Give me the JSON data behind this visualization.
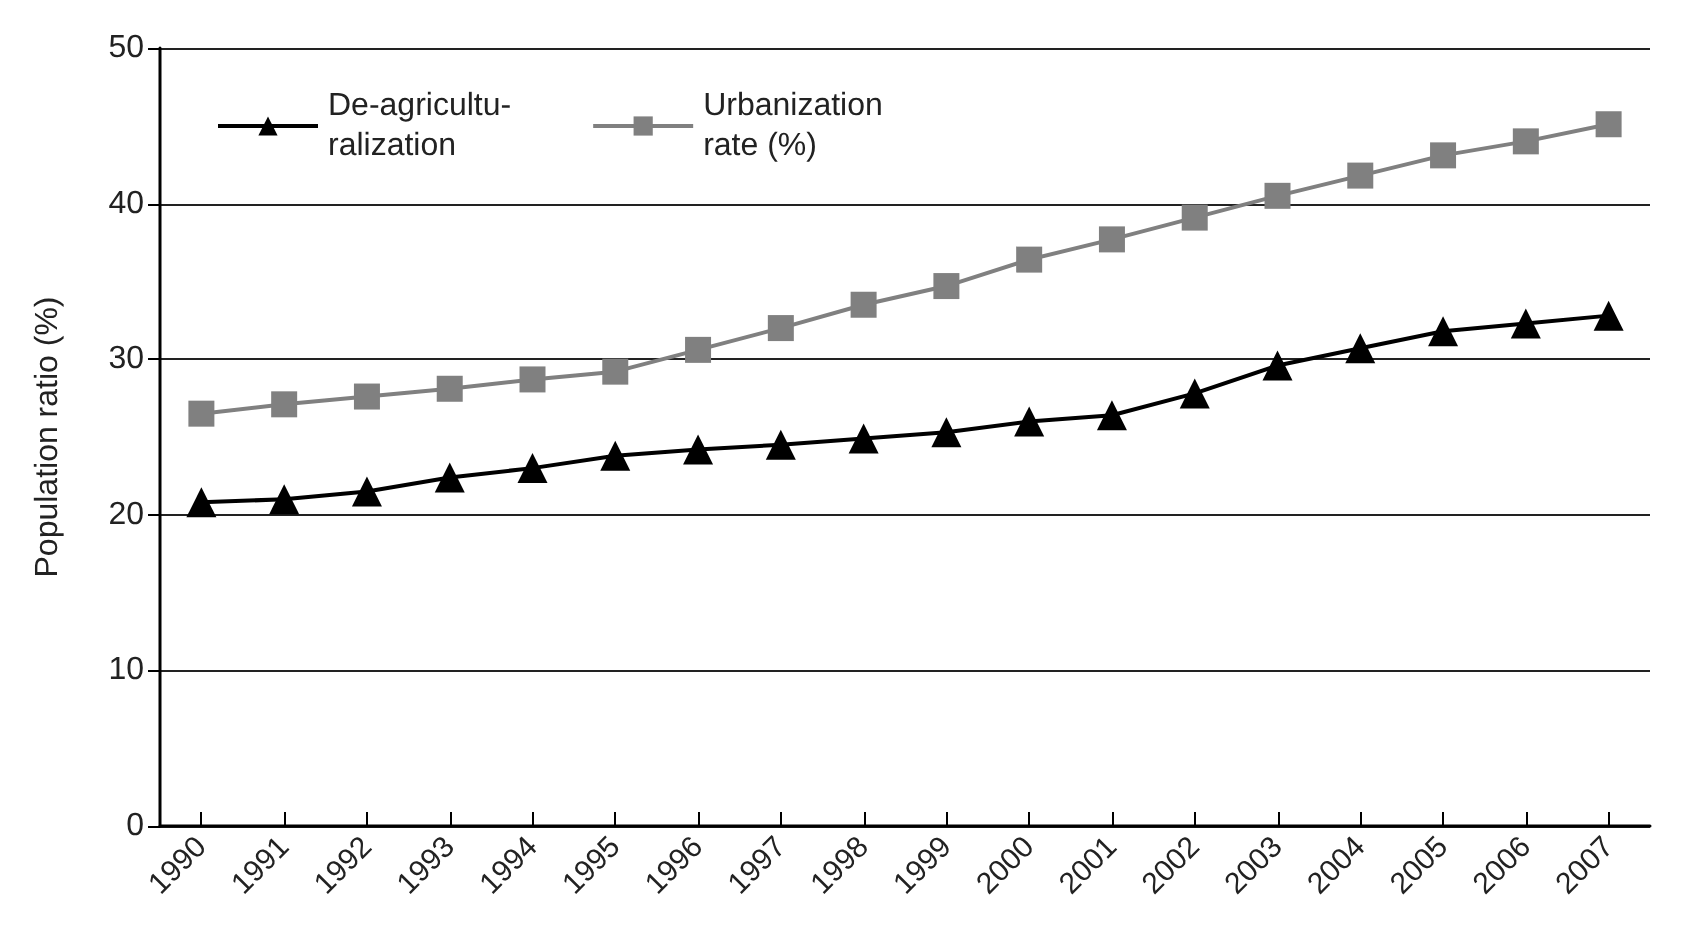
{
  "chart_data": {
    "type": "line",
    "ylabel": "Population ratio (%)",
    "categories": [
      "1990",
      "1991",
      "1992",
      "1993",
      "1994",
      "1995",
      "1996",
      "1997",
      "1998",
      "1999",
      "2000",
      "2001",
      "2002",
      "2003",
      "2004",
      "2005",
      "2006",
      "2007"
    ],
    "series": [
      {
        "name": "De-agricultu-\nralization",
        "color": "#000000",
        "marker": "triangle",
        "values": [
          20.8,
          21.0,
          21.5,
          22.4,
          23.0,
          23.8,
          24.2,
          24.5,
          24.9,
          25.3,
          26.0,
          26.4,
          27.8,
          29.6,
          30.7,
          31.8,
          32.3,
          32.8
        ]
      },
      {
        "name": "Urbanization\nrate (%)",
        "color": "#808080",
        "marker": "square",
        "values": [
          26.5,
          27.1,
          27.6,
          28.1,
          28.7,
          29.2,
          30.6,
          32.0,
          33.5,
          34.7,
          36.4,
          37.7,
          39.1,
          40.5,
          41.8,
          43.1,
          44.0,
          45.1
        ]
      }
    ],
    "ylim": [
      0,
      50
    ],
    "yticks": [
      0,
      10,
      20,
      30,
      40,
      50
    ],
    "grid": "y",
    "legend": "top left",
    "line_style": "solid"
  }
}
